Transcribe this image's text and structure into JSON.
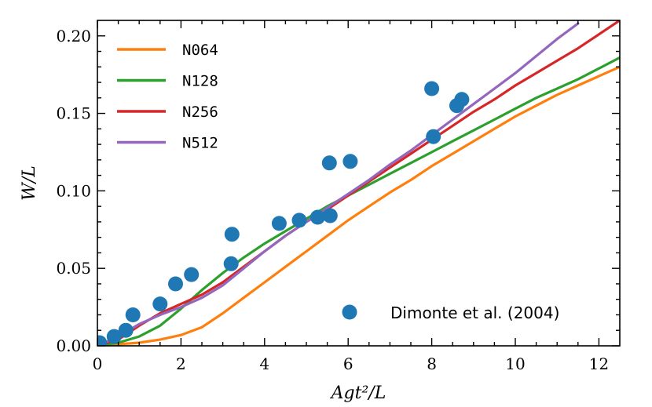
{
  "chart_data": {
    "type": "line",
    "title": "",
    "xlabel": "Agt²/L",
    "ylabel": "W/L",
    "xlim": [
      0,
      12.5
    ],
    "ylim": [
      0,
      0.21
    ],
    "x_ticks": [
      0,
      2,
      4,
      6,
      8,
      10,
      12
    ],
    "x_tick_labels": [
      "0",
      "2",
      "4",
      "6",
      "8",
      "10",
      "12"
    ],
    "y_ticks": [
      0.0,
      0.05,
      0.1,
      0.15,
      0.2
    ],
    "y_tick_labels": [
      "0.00",
      "0.05",
      "0.10",
      "0.15",
      "0.20"
    ],
    "grid": false,
    "legend_position": "top-left",
    "series": [
      {
        "name": "N064",
        "color": "#ff7f0e",
        "x": [
          0,
          0.5,
          1.0,
          1.5,
          2.0,
          2.5,
          3.0,
          3.5,
          4.0,
          4.5,
          5.0,
          5.5,
          6.0,
          6.5,
          7.0,
          7.5,
          8.0,
          8.5,
          9.0,
          9.5,
          10.0,
          10.5,
          11.0,
          11.5,
          12.0,
          12.5
        ],
        "y": [
          0.0,
          0.001,
          0.002,
          0.004,
          0.007,
          0.012,
          0.021,
          0.031,
          0.041,
          0.051,
          0.061,
          0.071,
          0.081,
          0.09,
          0.099,
          0.107,
          0.116,
          0.124,
          0.132,
          0.14,
          0.148,
          0.155,
          0.162,
          0.168,
          0.174,
          0.18
        ]
      },
      {
        "name": "N128",
        "color": "#2ca02c",
        "x": [
          0,
          0.5,
          1.0,
          1.5,
          2.0,
          2.5,
          3.0,
          3.5,
          4.0,
          4.5,
          5.0,
          5.5,
          6.0,
          6.5,
          7.0,
          7.5,
          8.0,
          8.5,
          9.0,
          9.5,
          10.0,
          10.5,
          11.0,
          11.5,
          12.0,
          12.5
        ],
        "y": [
          0.0,
          0.002,
          0.006,
          0.013,
          0.024,
          0.036,
          0.047,
          0.057,
          0.066,
          0.074,
          0.082,
          0.09,
          0.097,
          0.104,
          0.111,
          0.118,
          0.125,
          0.132,
          0.139,
          0.146,
          0.153,
          0.16,
          0.166,
          0.172,
          0.179,
          0.186
        ]
      },
      {
        "name": "N256",
        "color": "#d62728",
        "x": [
          0,
          0.5,
          1.0,
          1.5,
          2.0,
          2.5,
          3.0,
          3.5,
          4.0,
          4.5,
          5.0,
          5.5,
          6.0,
          6.5,
          7.0,
          7.5,
          8.0,
          8.5,
          9.0,
          9.5,
          10.0,
          10.5,
          11.0,
          11.5,
          12.0,
          12.5
        ],
        "y": [
          0.0,
          0.004,
          0.013,
          0.021,
          0.027,
          0.033,
          0.041,
          0.051,
          0.061,
          0.071,
          0.08,
          0.088,
          0.097,
          0.106,
          0.115,
          0.124,
          0.133,
          0.142,
          0.151,
          0.159,
          0.168,
          0.176,
          0.184,
          0.192,
          0.201,
          0.21
        ]
      },
      {
        "name": "N512",
        "color": "#9467bd",
        "x": [
          0,
          0.5,
          1.0,
          1.5,
          2.0,
          2.5,
          3.0,
          3.5,
          4.0,
          4.5,
          5.0,
          5.5,
          6.0,
          6.5,
          7.0,
          7.5,
          8.0,
          8.5,
          9.0,
          9.5,
          10.0,
          10.5,
          11.0,
          11.5
        ],
        "y": [
          0.0,
          0.006,
          0.014,
          0.02,
          0.025,
          0.031,
          0.039,
          0.05,
          0.061,
          0.071,
          0.08,
          0.089,
          0.098,
          0.107,
          0.117,
          0.126,
          0.136,
          0.146,
          0.156,
          0.166,
          0.176,
          0.187,
          0.198,
          0.208
        ]
      }
    ],
    "scatter": {
      "name": "Dimonte et al. (2004)",
      "color": "#1f77b4",
      "x": [
        0.05,
        0.4,
        0.68,
        0.85,
        1.5,
        1.87,
        2.25,
        3.2,
        3.22,
        4.35,
        4.83,
        5.27,
        5.57,
        5.55,
        6.05,
        8.0,
        8.04,
        8.6,
        8.72
      ],
      "y": [
        0.002,
        0.006,
        0.01,
        0.02,
        0.027,
        0.04,
        0.046,
        0.053,
        0.072,
        0.079,
        0.081,
        0.083,
        0.084,
        0.118,
        0.119,
        0.166,
        0.135,
        0.155,
        0.159
      ]
    }
  }
}
